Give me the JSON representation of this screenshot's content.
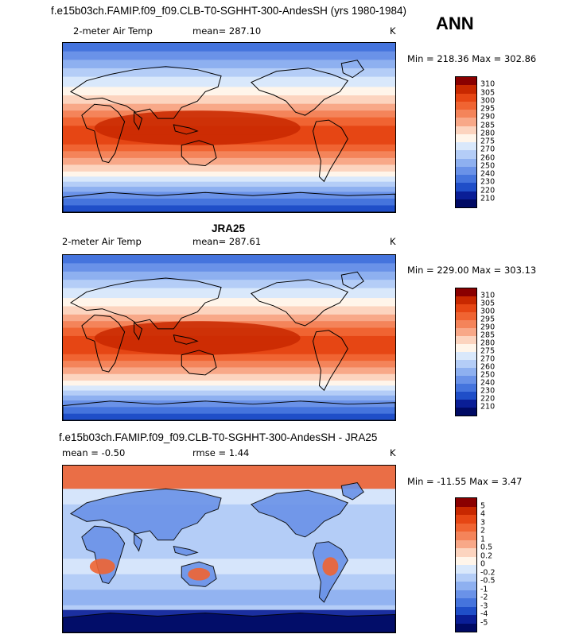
{
  "chart_data": [
    {
      "type": "heatmap",
      "title": "f.e15b03ch.FAMIP.f09_f09.CLB-T0-SGHHT-300-AndesSH (yrs 1980-1984)",
      "season": "ANN",
      "variable": "2-meter Air Temp",
      "mean_text": "mean= 287.10",
      "units": "K",
      "minmax_text": "Min = 218.36 Max = 302.86",
      "min": 218.36,
      "max": 302.86,
      "mean": 287.1,
      "levels": [
        "310",
        "305",
        "300",
        "295",
        "290",
        "285",
        "280",
        "275",
        "270",
        "260",
        "250",
        "240",
        "230",
        "220",
        "210"
      ],
      "colors": [
        "#8a0000",
        "#c82800",
        "#e64614",
        "#f06432",
        "#f4845a",
        "#f8a888",
        "#fcd4bf",
        "#fff5ea",
        "#d9e8fb",
        "#b4cdf7",
        "#8eb0f0",
        "#6a92e8",
        "#4574dd",
        "#1f4ec8",
        "#0a1e96",
        "#000a64"
      ]
    },
    {
      "type": "heatmap",
      "title": "JRA25",
      "variable": "2-meter Air Temp",
      "mean_text": "mean= 287.61",
      "units": "K",
      "minmax_text": "Min = 229.00 Max = 303.13",
      "min": 229.0,
      "max": 303.13,
      "mean": 287.61,
      "levels": [
        "310",
        "305",
        "300",
        "295",
        "290",
        "285",
        "280",
        "275",
        "270",
        "260",
        "250",
        "240",
        "230",
        "220",
        "210"
      ],
      "colors": [
        "#8a0000",
        "#c82800",
        "#e64614",
        "#f06432",
        "#f4845a",
        "#f8a888",
        "#fcd4bf",
        "#fff5ea",
        "#d9e8fb",
        "#b4cdf7",
        "#8eb0f0",
        "#6a92e8",
        "#4574dd",
        "#1f4ec8",
        "#0a1e96",
        "#000a64"
      ]
    },
    {
      "type": "heatmap",
      "title": "f.e15b03ch.FAMIP.f09_f09.CLB-T0-SGHHT-300-AndesSH - JRA25",
      "mean_text": "mean =   -0.50",
      "rmse_text": "rmse =    1.44",
      "units": "K",
      "minmax_text": "Min = -11.55 Max =    3.47",
      "min": -11.55,
      "max": 3.47,
      "mean": -0.5,
      "rmse": 1.44,
      "levels": [
        "5",
        "4",
        "3",
        "2",
        "1",
        "0.5",
        "0.2",
        "0",
        "-0.2",
        "-0.5",
        "-1",
        "-2",
        "-3",
        "-4",
        "-5"
      ],
      "colors": [
        "#8a0000",
        "#c82800",
        "#e64614",
        "#f06432",
        "#f4845a",
        "#f8a888",
        "#fcd4bf",
        "#fff5ea",
        "#d9e8fb",
        "#b4cdf7",
        "#8eb0f0",
        "#6a92e8",
        "#4574dd",
        "#1f4ec8",
        "#0a1e96",
        "#000a64"
      ]
    }
  ]
}
